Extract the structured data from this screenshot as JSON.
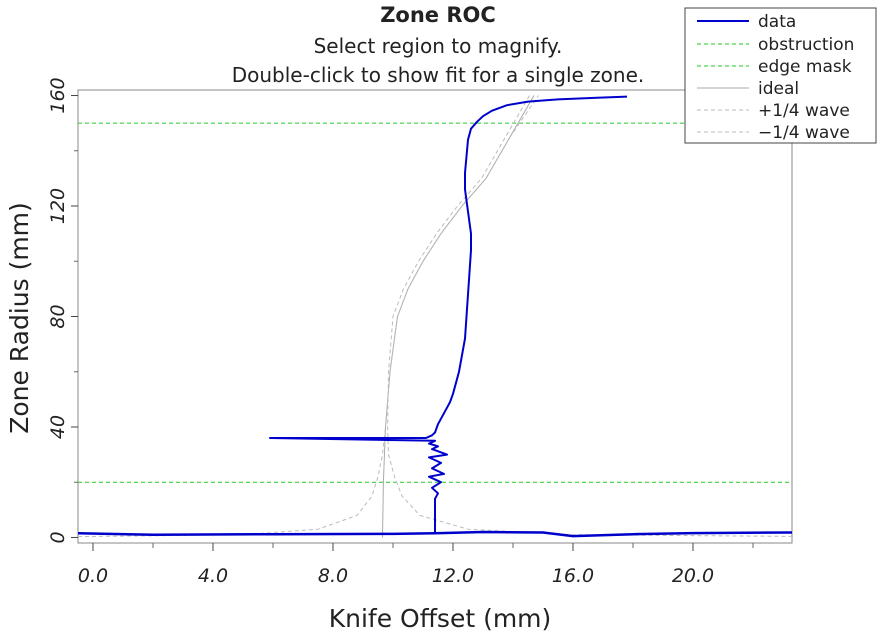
{
  "chart_data": {
    "type": "line",
    "title": "Zone ROC",
    "subtitle_lines": [
      "Select region to magnify.",
      "Double-click to show fit for a single zone."
    ],
    "xlabel": "Knife Offset (mm)",
    "ylabel": "Zone Radius (mm)",
    "xlim": [
      -0.5,
      23.3
    ],
    "ylim": [
      -2,
      162
    ],
    "x_ticks": [
      0,
      4,
      8,
      12,
      16,
      20
    ],
    "x_tick_labels": [
      "0.0",
      "4.0",
      "8.0",
      "12.0",
      "16.0",
      "20.0"
    ],
    "y_ticks": [
      0,
      40,
      80,
      120,
      160
    ],
    "y_tick_labels": [
      "0",
      "40",
      "80",
      "120",
      "160"
    ],
    "grid": false,
    "legend_position": "top-right",
    "legend": [
      "data",
      "obstruction",
      "edge mask",
      "ideal",
      "+1/4 wave",
      "−1/4 wave"
    ],
    "colors": {
      "data": "#0000cc",
      "obstruction": "#22cc22",
      "edge_mask": "#22cc22",
      "ideal": "#aaaaaa",
      "quarter_wave": "#bbbbbb"
    },
    "obstruction_radius": 20,
    "edge_mask_radius": 150,
    "series": [
      {
        "name": "data",
        "style": "solid",
        "x": [
          11.4,
          11.4,
          11.5,
          11.3,
          11.6,
          11.2,
          11.7,
          11.3,
          11.6,
          11.2,
          11.8,
          11.3,
          11.5,
          11.2,
          11.4,
          5.9,
          7.2,
          11.1,
          11.3,
          11.4,
          11.5,
          11.6,
          11.7,
          11.8,
          11.9,
          12.0,
          12.1,
          12.2,
          12.3,
          12.4,
          12.45,
          12.5,
          12.55,
          12.6,
          12.6,
          12.55,
          12.5,
          12.45,
          12.4,
          12.4,
          12.45,
          12.5,
          12.6,
          12.8,
          13.0,
          13.3,
          13.8,
          14.5,
          15.5,
          16.8,
          17.8
        ],
        "y": [
          2,
          14,
          16,
          18,
          20,
          22,
          23,
          25,
          27,
          29,
          30,
          32,
          33,
          34,
          35,
          36,
          36,
          36,
          37,
          38,
          41,
          43,
          45,
          47,
          49,
          52,
          56,
          60,
          66,
          72,
          80,
          88,
          96,
          104,
          110,
          114,
          118,
          122,
          126,
          132,
          138,
          144,
          148,
          150.5,
          152.5,
          154.5,
          156.5,
          157.8,
          158.6,
          159.2,
          159.6
        ]
      },
      {
        "name": "data-baseline",
        "style": "solid",
        "x": [
          -0.5,
          2.0,
          6.0,
          10.0,
          11.4,
          13.0,
          15.0,
          16.0,
          18.0,
          20.0,
          23.3
        ],
        "y": [
          1.5,
          1.0,
          1.2,
          1.3,
          1.5,
          2.0,
          1.8,
          0.5,
          1.2,
          1.6,
          1.8
        ]
      },
      {
        "name": "ideal",
        "style": "solid",
        "x": [
          9.65,
          9.68,
          9.75,
          9.9,
          10.15,
          10.5,
          11.0,
          11.6,
          12.3,
          13.1,
          13.9,
          14.7
        ],
        "y": [
          0,
          20,
          40,
          60,
          80,
          90,
          100,
          110,
          120,
          130,
          145,
          160
        ]
      },
      {
        "name": "+1/4 wave",
        "style": "dashed",
        "x": [
          -0.5,
          5.0,
          7.5,
          8.8,
          9.3,
          9.5,
          9.65,
          9.75,
          9.9,
          10.15,
          10.5,
          11.0,
          11.6,
          12.3,
          13.1,
          13.9,
          14.85
        ],
        "y": [
          0.3,
          1.0,
          3.0,
          8.0,
          15.0,
          22.0,
          30.0,
          40.0,
          60.0,
          80.0,
          90.0,
          100.0,
          110.0,
          120.0,
          130.0,
          145.0,
          160.0
        ]
      },
      {
        "name": "−1/4 wave",
        "style": "dashed",
        "x": [
          14.55,
          13.75,
          12.95,
          12.15,
          11.45,
          10.85,
          10.35,
          10.0,
          9.85,
          9.82,
          9.85,
          10.05,
          10.3,
          10.9,
          12.5,
          16.0,
          23.3
        ],
        "y": [
          160.0,
          145.0,
          130.0,
          120.0,
          110.0,
          100.0,
          90.0,
          80.0,
          60.0,
          40.0,
          30.0,
          22.0,
          15.0,
          8.0,
          3.0,
          1.0,
          0.4
        ]
      }
    ]
  }
}
